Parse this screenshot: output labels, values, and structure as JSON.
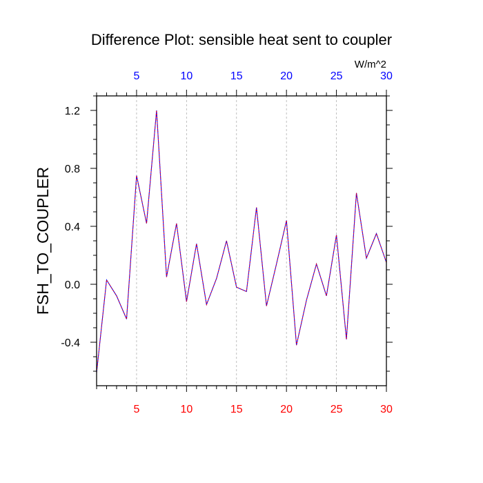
{
  "chart_data": {
    "type": "line",
    "title": "Difference Plot: sensible heat sent to coupler",
    "ylabel": "FSH_TO_COUPLER",
    "units_label": "W/m^2",
    "xlim": [
      1,
      30
    ],
    "ylim": [
      -0.7,
      1.3
    ],
    "x_ticks": [
      5,
      10,
      15,
      20,
      25,
      30
    ],
    "x_tick_labels": [
      "5",
      "10",
      "15",
      "20",
      "25",
      "30"
    ],
    "y_ticks": [
      -0.4,
      0.0,
      0.4,
      0.8,
      1.2
    ],
    "y_tick_labels": [
      "-0.4",
      "0.0",
      "0.4",
      "0.8",
      "1.2"
    ],
    "vertical_grid": true,
    "x": [
      1,
      2,
      3,
      4,
      5,
      6,
      7,
      8,
      9,
      10,
      11,
      12,
      13,
      14,
      15,
      16,
      17,
      18,
      19,
      20,
      21,
      22,
      23,
      24,
      25,
      26,
      27,
      28,
      29,
      30
    ],
    "series": [
      {
        "values": [
          -0.61,
          0.03,
          -0.08,
          -0.24,
          0.75,
          0.42,
          1.2,
          0.05,
          0.42,
          -0.12,
          0.28,
          -0.14,
          0.04,
          0.3,
          -0.02,
          -0.05,
          0.53,
          -0.15,
          0.14,
          0.44,
          -0.42,
          -0.11,
          0.14,
          -0.08,
          0.34,
          -0.38,
          0.63,
          0.18,
          0.35,
          0.15
        ],
        "color": "#0000ff",
        "dash_color": "#ff0000"
      }
    ],
    "colors": {
      "top_axis_labels": "#0000ff",
      "bottom_axis_labels": "#ff0000",
      "grid": "#b0b0b0",
      "frame": "#000000"
    }
  }
}
